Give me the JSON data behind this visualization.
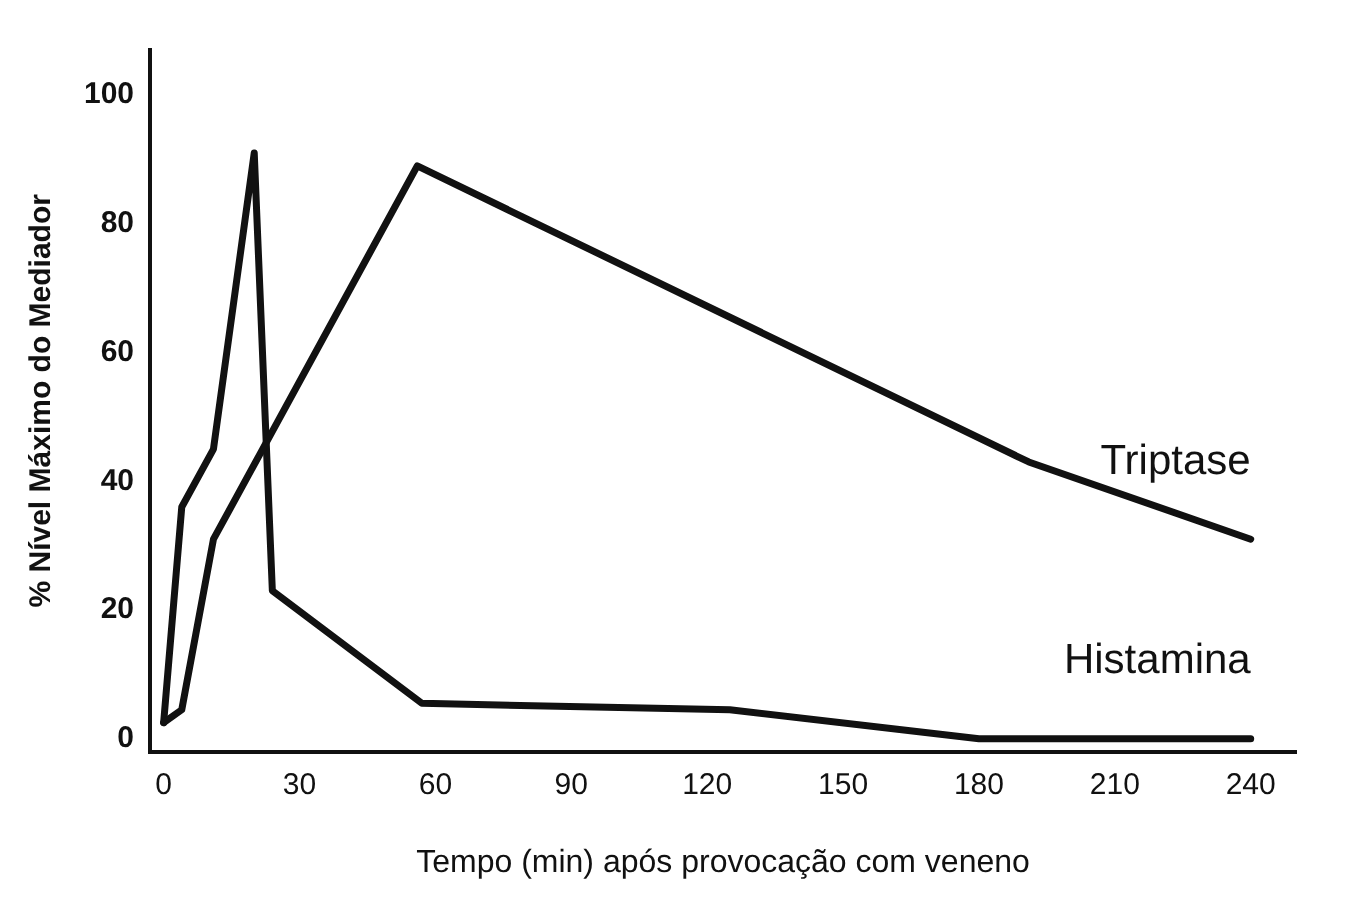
{
  "chart_data": {
    "type": "line",
    "xlabel": "Tempo (min) após provocação com veneno",
    "ylabel": "% Nível Máximo do Mediador",
    "xlim": [
      -3,
      250
    ],
    "ylim": [
      -2,
      107
    ],
    "xticks": [
      0,
      30,
      60,
      90,
      120,
      150,
      180,
      210,
      240
    ],
    "yticks": [
      0,
      20,
      40,
      60,
      80,
      100
    ],
    "grid": false,
    "legend": false,
    "marker": "none",
    "series": [
      {
        "name": "Triptase",
        "color": "#111111",
        "x": [
          0,
          4,
          11,
          56,
          191,
          240
        ],
        "values": [
          2.5,
          4.5,
          31,
          89,
          43,
          31
        ]
      },
      {
        "name": "Histamina",
        "color": "#111111",
        "x": [
          0,
          4,
          11,
          20,
          24,
          57,
          125,
          180,
          240
        ],
        "values": [
          2.5,
          36,
          45,
          91,
          23,
          5.5,
          4.5,
          0,
          0
        ]
      }
    ]
  }
}
